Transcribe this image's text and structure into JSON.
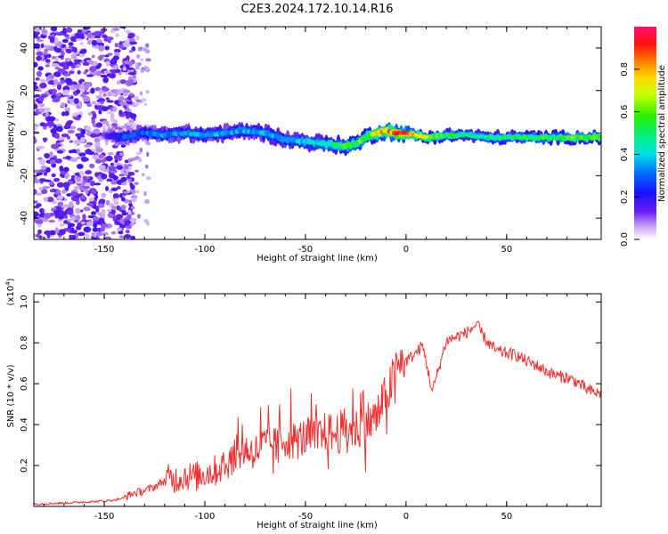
{
  "figure": {
    "title": "C2E3.2024.172.10.14.R16"
  },
  "chart_data": [
    {
      "type": "heatmap",
      "id": "spectrogram",
      "title": "",
      "xlabel": "Height of straight line (km)",
      "ylabel": "Frequency (Hz)",
      "xlim": [
        -185,
        97
      ],
      "ylim": [
        -50,
        50
      ],
      "xticks": [
        -150,
        -100,
        -50,
        0,
        50
      ],
      "yticks": [
        -40,
        -20,
        0,
        20,
        40
      ],
      "ridge_frequency": {
        "x": [
          -185,
          -150,
          -140,
          -130,
          -120,
          -110,
          -100,
          -90,
          -80,
          -70,
          -60,
          -50,
          -40,
          -30,
          -25,
          -20,
          -15,
          -10,
          -5,
          0,
          5,
          10,
          20,
          30,
          40,
          50,
          60,
          70,
          80,
          90,
          97
        ],
        "y": [
          0,
          -1,
          -2,
          0,
          -1,
          0,
          -1,
          0,
          1,
          0,
          -3,
          -4,
          -5,
          -6,
          -5,
          -2,
          0,
          1,
          0,
          0,
          -1,
          -2,
          -1,
          -1,
          -2,
          -2,
          -2,
          -2,
          -2,
          -2,
          -2
        ]
      },
      "ridge_amplitude": {
        "x": [
          -150,
          -140,
          -120,
          -100,
          -80,
          -60,
          -40,
          -30,
          -20,
          -10,
          0,
          10,
          30,
          50,
          70,
          97
        ],
        "y": [
          0.12,
          0.28,
          0.33,
          0.34,
          0.35,
          0.37,
          0.44,
          0.55,
          0.6,
          0.8,
          0.85,
          0.65,
          0.45,
          0.5,
          0.55,
          0.6
        ]
      },
      "colorbar": {
        "label": "Normalized spectral amplitude",
        "range": [
          0,
          1
        ],
        "ticks": [
          0.0,
          0.2,
          0.4,
          0.6,
          0.8
        ],
        "tick_labels": [
          "0.0",
          "0.2",
          "0.4",
          "0.6",
          "0.8"
        ]
      }
    },
    {
      "type": "line",
      "id": "snr",
      "title": "",
      "xlabel": "Height of straight line (km)",
      "ylabel": "SNR (10 * v/v)",
      "y_multiplier": "(x10^4)",
      "xlim": [
        -185,
        97
      ],
      "ylim": [
        0,
        1.04
      ],
      "xticks": [
        -150,
        -100,
        -50,
        0,
        50
      ],
      "yticks": [
        0.2,
        0.4,
        0.6,
        0.8,
        1.0
      ],
      "series": [
        {
          "color": "#ee3030",
          "x": [
            -185,
            -170,
            -160,
            -150,
            -145,
            -140,
            -135,
            -130,
            -125,
            -120,
            -115,
            -110,
            -105,
            -100,
            -95,
            -90,
            -85,
            -80,
            -75,
            -70,
            -65,
            -60,
            -55,
            -50,
            -45,
            -40,
            -35,
            -30,
            -25,
            -20,
            -15,
            -10,
            -5,
            0,
            5,
            8,
            10,
            13,
            15,
            20,
            25,
            30,
            35,
            40,
            45,
            50,
            55,
            60,
            65,
            70,
            75,
            80,
            85,
            90,
            97
          ],
          "y": [
            0.01,
            0.015,
            0.02,
            0.025,
            0.03,
            0.04,
            0.06,
            0.07,
            0.09,
            0.12,
            0.11,
            0.13,
            0.12,
            0.14,
            0.15,
            0.18,
            0.22,
            0.25,
            0.24,
            0.28,
            0.27,
            0.3,
            0.29,
            0.31,
            0.3,
            0.33,
            0.32,
            0.35,
            0.34,
            0.37,
            0.4,
            0.5,
            0.62,
            0.7,
            0.74,
            0.78,
            0.7,
            0.55,
            0.62,
            0.8,
            0.82,
            0.84,
            0.88,
            0.8,
            0.75,
            0.74,
            0.73,
            0.7,
            0.68,
            0.65,
            0.63,
            0.62,
            0.6,
            0.56,
            0.54
          ]
        }
      ]
    }
  ]
}
